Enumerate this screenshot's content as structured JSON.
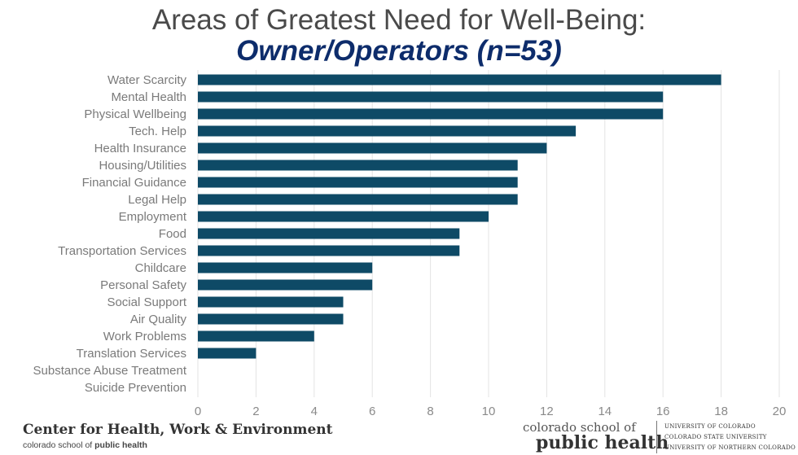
{
  "title_line1": "Areas of Greatest Need for Well-Being:",
  "title_line2": "Owner/Operators (n=53)",
  "chart_data": {
    "type": "bar",
    "orientation": "horizontal",
    "categories": [
      "Water Scarcity",
      "Mental Health",
      "Physical Wellbeing",
      "Tech. Help",
      "Health Insurance",
      "Housing/Utilities",
      "Financial Guidance",
      "Legal Help",
      "Employment",
      "Food",
      "Transportation Services",
      "Childcare",
      "Personal Safety",
      "Social Support",
      "Air Quality",
      "Work Problems",
      "Translation Services",
      "Substance Abuse Treatment",
      "Suicide Prevention"
    ],
    "values": [
      18,
      16,
      16,
      13,
      12,
      11,
      11,
      11,
      10,
      9,
      9,
      6,
      6,
      5,
      5,
      4,
      2,
      0,
      0
    ],
    "xlim": [
      0,
      20
    ],
    "xticks": [
      0,
      2,
      4,
      6,
      8,
      10,
      12,
      14,
      16,
      18,
      20
    ],
    "grid": "vertical",
    "bar_color": "#0e4a66"
  },
  "footer": {
    "left_title": "Center for Health, Work & Environment",
    "left_sub_prefix": "colorado school of ",
    "left_sub_bold": "public health",
    "csph_top": "colorado school of",
    "csph_bottom": "public health",
    "universities": [
      "UNIVERSITY OF COLORADO",
      "COLORADO STATE UNIVERSITY",
      "UNIVERSITY OF NORTHERN COLORADO"
    ]
  }
}
